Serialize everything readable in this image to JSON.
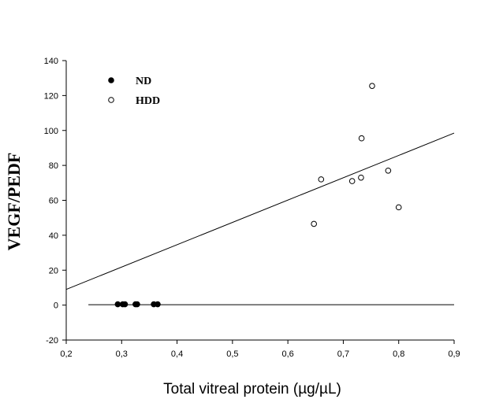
{
  "chart_data": {
    "type": "scatter",
    "xlabel": "Total vitreal protein (µg/µL)",
    "ylabel": "VEGF/PEDF",
    "xlim": [
      0.2,
      0.9
    ],
    "ylim": [
      -20,
      140
    ],
    "x_ticks": [
      "0,2",
      "0,3",
      "0,4",
      "0,5",
      "0,6",
      "0,7",
      "0,8",
      "0,9"
    ],
    "x_tick_values": [
      0.2,
      0.3,
      0.4,
      0.5,
      0.6,
      0.7,
      0.8,
      0.9
    ],
    "y_ticks": [
      "-20",
      "0",
      "20",
      "40",
      "60",
      "80",
      "100",
      "120",
      "140"
    ],
    "y_tick_values": [
      -20,
      0,
      20,
      40,
      60,
      80,
      100,
      120,
      140
    ],
    "legend_position": "top-left",
    "series": [
      {
        "name": "ND",
        "marker": "filled-circle",
        "color": "#000000",
        "points": [
          [
            0.293,
            0.5
          ],
          [
            0.302,
            0.5
          ],
          [
            0.306,
            0.5
          ],
          [
            0.325,
            0.5
          ],
          [
            0.328,
            0.5
          ],
          [
            0.358,
            0.5
          ],
          [
            0.365,
            0.5
          ]
        ],
        "fit": {
          "from": [
            0.24,
            0.2
          ],
          "to": [
            0.9,
            0.2
          ]
        }
      },
      {
        "name": "HDD",
        "marker": "open-circle",
        "color": "#000000",
        "points": [
          [
            0.647,
            46.5
          ],
          [
            0.66,
            72
          ],
          [
            0.716,
            71
          ],
          [
            0.732,
            73
          ],
          [
            0.733,
            95.5
          ],
          [
            0.752,
            125.5
          ],
          [
            0.781,
            77
          ],
          [
            0.8,
            56
          ]
        ],
        "fit": {
          "from": [
            0.2,
            9
          ],
          "to": [
            0.9,
            98.5
          ]
        }
      }
    ]
  }
}
